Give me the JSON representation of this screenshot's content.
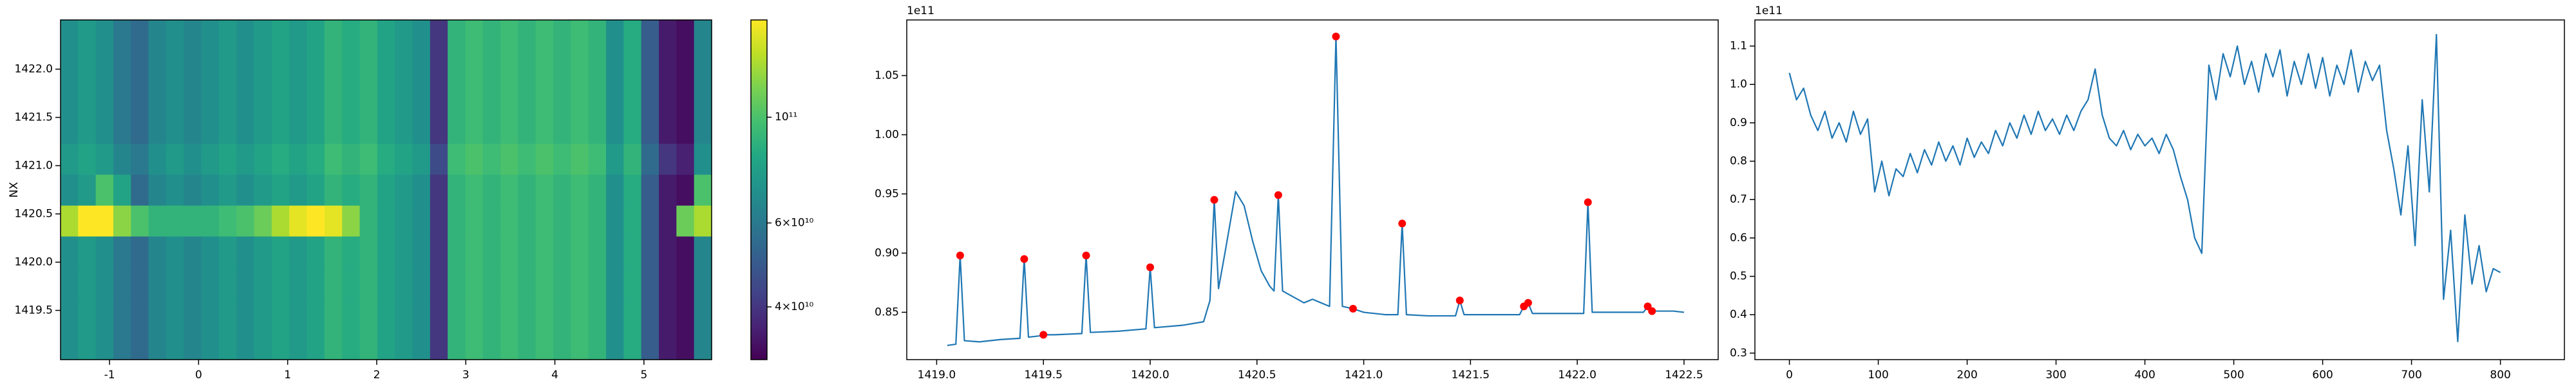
{
  "chart_data": [
    {
      "type": "heatmap",
      "ylabel": "NX",
      "colormap": "viridis",
      "zscale": "log",
      "xlim": [
        -1.55,
        5.76
      ],
      "ylim": [
        1418.99,
        1422.51
      ],
      "xticks": [
        -1,
        0,
        1,
        2,
        3,
        4,
        5
      ],
      "yticks": [
        1419.5,
        {
          "value": 1420,
          "label": "1420.0"
        },
        1420.5,
        {
          "value": 1421,
          "label": "1421.0"
        },
        1421.5,
        {
          "value": 1422,
          "label": "1422.0"
        }
      ],
      "zlim": [
        31000000000.0,
        160000000000.0
      ],
      "zticks": [
        {
          "value": 40000000000.0,
          "label": "4×10¹⁰"
        },
        {
          "value": 60000000000.0,
          "label": "6×10¹⁰"
        },
        {
          "value": 100000000000.0,
          "label": "10¹¹"
        }
      ],
      "z": [
        [
          70000000000.0,
          75000000000.0,
          70000000000.0,
          60000000000.0,
          55000000000.0,
          65000000000.0,
          70000000000.0,
          65000000000.0,
          70000000000.0,
          75000000000.0,
          70000000000.0,
          75000000000.0,
          80000000000.0,
          75000000000.0,
          80000000000.0,
          90000000000.0,
          85000000000.0,
          90000000000.0,
          80000000000.0,
          75000000000.0,
          70000000000.0,
          40000000000.0,
          90000000000.0,
          95000000000.0,
          90000000000.0,
          95000000000.0,
          90000000000.0,
          95000000000.0,
          90000000000.0,
          95000000000.0,
          90000000000.0,
          70000000000.0,
          85000000000.0,
          50000000000.0,
          35000000000.0,
          33000000000.0,
          65000000000.0
        ],
        [
          70000000000.0,
          75000000000.0,
          70000000000.0,
          60000000000.0,
          55000000000.0,
          65000000000.0,
          70000000000.0,
          65000000000.0,
          70000000000.0,
          75000000000.0,
          70000000000.0,
          75000000000.0,
          80000000000.0,
          75000000000.0,
          80000000000.0,
          90000000000.0,
          85000000000.0,
          90000000000.0,
          80000000000.0,
          75000000000.0,
          70000000000.0,
          40000000000.0,
          90000000000.0,
          95000000000.0,
          90000000000.0,
          95000000000.0,
          90000000000.0,
          95000000000.0,
          90000000000.0,
          95000000000.0,
          90000000000.0,
          70000000000.0,
          85000000000.0,
          50000000000.0,
          35000000000.0,
          33000000000.0,
          65000000000.0
        ],
        [
          70000000000.0,
          75000000000.0,
          70000000000.0,
          60000000000.0,
          55000000000.0,
          65000000000.0,
          70000000000.0,
          65000000000.0,
          70000000000.0,
          75000000000.0,
          70000000000.0,
          75000000000.0,
          80000000000.0,
          75000000000.0,
          80000000000.0,
          90000000000.0,
          85000000000.0,
          90000000000.0,
          80000000000.0,
          75000000000.0,
          70000000000.0,
          40000000000.0,
          90000000000.0,
          95000000000.0,
          90000000000.0,
          95000000000.0,
          90000000000.0,
          95000000000.0,
          90000000000.0,
          95000000000.0,
          90000000000.0,
          70000000000.0,
          85000000000.0,
          50000000000.0,
          35000000000.0,
          33000000000.0,
          65000000000.0
        ],
        [
          70000000000.0,
          75000000000.0,
          70000000000.0,
          60000000000.0,
          55000000000.0,
          65000000000.0,
          70000000000.0,
          65000000000.0,
          70000000000.0,
          75000000000.0,
          70000000000.0,
          75000000000.0,
          80000000000.0,
          75000000000.0,
          80000000000.0,
          90000000000.0,
          85000000000.0,
          90000000000.0,
          80000000000.0,
          75000000000.0,
          70000000000.0,
          40000000000.0,
          90000000000.0,
          95000000000.0,
          90000000000.0,
          95000000000.0,
          90000000000.0,
          95000000000.0,
          90000000000.0,
          95000000000.0,
          90000000000.0,
          70000000000.0,
          85000000000.0,
          50000000000.0,
          35000000000.0,
          33000000000.0,
          65000000000.0
        ],
        [
          130000000000.0,
          160000000000.0,
          160000000000.0,
          120000000000.0,
          100000000000.0,
          90000000000.0,
          90000000000.0,
          90000000000.0,
          90000000000.0,
          95000000000.0,
          100000000000.0,
          110000000000.0,
          130000000000.0,
          150000000000.0,
          160000000000.0,
          150000000000.0,
          120000000000.0,
          90000000000.0,
          80000000000.0,
          75000000000.0,
          70000000000.0,
          40000000000.0,
          90000000000.0,
          95000000000.0,
          90000000000.0,
          95000000000.0,
          90000000000.0,
          95000000000.0,
          90000000000.0,
          95000000000.0,
          90000000000.0,
          70000000000.0,
          85000000000.0,
          50000000000.0,
          35000000000.0,
          110000000000.0,
          130000000000.0
        ],
        [
          70000000000.0,
          75000000000.0,
          100000000000.0,
          80000000000.0,
          55000000000.0,
          65000000000.0,
          70000000000.0,
          65000000000.0,
          70000000000.0,
          75000000000.0,
          70000000000.0,
          75000000000.0,
          80000000000.0,
          75000000000.0,
          80000000000.0,
          90000000000.0,
          85000000000.0,
          90000000000.0,
          80000000000.0,
          75000000000.0,
          70000000000.0,
          40000000000.0,
          90000000000.0,
          95000000000.0,
          90000000000.0,
          95000000000.0,
          90000000000.0,
          95000000000.0,
          90000000000.0,
          95000000000.0,
          90000000000.0,
          70000000000.0,
          85000000000.0,
          50000000000.0,
          35000000000.0,
          33000000000.0,
          100000000000.0
        ],
        [
          75000000000.0,
          80000000000.0,
          75000000000.0,
          65000000000.0,
          60000000000.0,
          70000000000.0,
          75000000000.0,
          70000000000.0,
          75000000000.0,
          80000000000.0,
          75000000000.0,
          80000000000.0,
          85000000000.0,
          80000000000.0,
          85000000000.0,
          95000000000.0,
          90000000000.0,
          95000000000.0,
          85000000000.0,
          80000000000.0,
          75000000000.0,
          45000000000.0,
          95000000000.0,
          100000000000.0,
          95000000000.0,
          100000000000.0,
          95000000000.0,
          100000000000.0,
          95000000000.0,
          100000000000.0,
          95000000000.0,
          75000000000.0,
          90000000000.0,
          55000000000.0,
          40000000000.0,
          36000000000.0,
          70000000000.0
        ],
        [
          70000000000.0,
          75000000000.0,
          70000000000.0,
          60000000000.0,
          55000000000.0,
          65000000000.0,
          70000000000.0,
          65000000000.0,
          70000000000.0,
          75000000000.0,
          70000000000.0,
          75000000000.0,
          80000000000.0,
          75000000000.0,
          80000000000.0,
          90000000000.0,
          85000000000.0,
          90000000000.0,
          80000000000.0,
          75000000000.0,
          70000000000.0,
          40000000000.0,
          90000000000.0,
          95000000000.0,
          90000000000.0,
          95000000000.0,
          90000000000.0,
          95000000000.0,
          90000000000.0,
          95000000000.0,
          90000000000.0,
          70000000000.0,
          85000000000.0,
          50000000000.0,
          35000000000.0,
          33000000000.0,
          65000000000.0
        ],
        [
          70000000000.0,
          75000000000.0,
          70000000000.0,
          60000000000.0,
          55000000000.0,
          65000000000.0,
          70000000000.0,
          65000000000.0,
          70000000000.0,
          75000000000.0,
          70000000000.0,
          75000000000.0,
          80000000000.0,
          75000000000.0,
          80000000000.0,
          90000000000.0,
          85000000000.0,
          90000000000.0,
          80000000000.0,
          75000000000.0,
          70000000000.0,
          40000000000.0,
          90000000000.0,
          95000000000.0,
          90000000000.0,
          95000000000.0,
          90000000000.0,
          95000000000.0,
          90000000000.0,
          95000000000.0,
          90000000000.0,
          70000000000.0,
          85000000000.0,
          50000000000.0,
          35000000000.0,
          33000000000.0,
          65000000000.0
        ],
        [
          70000000000.0,
          75000000000.0,
          70000000000.0,
          60000000000.0,
          55000000000.0,
          65000000000.0,
          70000000000.0,
          65000000000.0,
          70000000000.0,
          75000000000.0,
          70000000000.0,
          75000000000.0,
          80000000000.0,
          75000000000.0,
          80000000000.0,
          90000000000.0,
          85000000000.0,
          90000000000.0,
          80000000000.0,
          75000000000.0,
          70000000000.0,
          40000000000.0,
          90000000000.0,
          95000000000.0,
          90000000000.0,
          95000000000.0,
          90000000000.0,
          95000000000.0,
          90000000000.0,
          95000000000.0,
          90000000000.0,
          70000000000.0,
          85000000000.0,
          50000000000.0,
          35000000000.0,
          33000000000.0,
          65000000000.0
        ],
        [
          70000000000.0,
          75000000000.0,
          70000000000.0,
          60000000000.0,
          55000000000.0,
          65000000000.0,
          70000000000.0,
          65000000000.0,
          70000000000.0,
          75000000000.0,
          70000000000.0,
          75000000000.0,
          80000000000.0,
          75000000000.0,
          80000000000.0,
          90000000000.0,
          85000000000.0,
          90000000000.0,
          80000000000.0,
          75000000000.0,
          70000000000.0,
          40000000000.0,
          90000000000.0,
          95000000000.0,
          90000000000.0,
          95000000000.0,
          90000000000.0,
          95000000000.0,
          90000000000.0,
          95000000000.0,
          90000000000.0,
          70000000000.0,
          85000000000.0,
          50000000000.0,
          35000000000.0,
          33000000000.0,
          65000000000.0
        ]
      ]
    },
    {
      "type": "line",
      "offset_label": "1e11",
      "color": "#1f77b4",
      "xlim": [
        1418.86,
        1422.66
      ],
      "ylim": [
        0.81,
        1.097
      ],
      "xticks": [
        {
          "value": 1419,
          "label": "1419.0"
        },
        1419.5,
        {
          "value": 1420,
          "label": "1420.0"
        },
        1420.5,
        {
          "value": 1421,
          "label": "1421.0"
        },
        1421.5,
        {
          "value": 1422,
          "label": "1422.0"
        },
        1422.5
      ],
      "yticks": [
        0.85,
        {
          "value": 0.9,
          "label": "0.90"
        },
        0.95,
        {
          "value": 1,
          "label": "1.00"
        },
        1.05
      ],
      "x": [
        1419.05,
        1419.09,
        1419.11,
        1419.13,
        1419.2,
        1419.3,
        1419.39,
        1419.41,
        1419.43,
        1419.48,
        1419.5,
        1419.55,
        1419.68,
        1419.7,
        1419.72,
        1419.85,
        1419.98,
        1420.0,
        1420.02,
        1420.15,
        1420.25,
        1420.28,
        1420.3,
        1420.32,
        1420.35,
        1420.4,
        1420.44,
        1420.48,
        1420.52,
        1420.56,
        1420.58,
        1420.6,
        1420.62,
        1420.68,
        1420.72,
        1420.76,
        1420.8,
        1420.84,
        1420.87,
        1420.9,
        1420.95,
        1421.0,
        1421.1,
        1421.16,
        1421.18,
        1421.2,
        1421.3,
        1421.43,
        1421.45,
        1421.47,
        1421.6,
        1421.73,
        1421.75,
        1421.77,
        1421.79,
        1421.9,
        1422.03,
        1422.05,
        1422.07,
        1422.2,
        1422.31,
        1422.33,
        1422.35,
        1422.45,
        1422.5
      ],
      "values": [
        0.822,
        0.823,
        0.898,
        0.826,
        0.825,
        0.827,
        0.828,
        0.895,
        0.829,
        0.83,
        0.831,
        0.831,
        0.832,
        0.898,
        0.833,
        0.834,
        0.836,
        0.888,
        0.837,
        0.839,
        0.842,
        0.86,
        0.945,
        0.87,
        0.9,
        0.952,
        0.94,
        0.91,
        0.885,
        0.872,
        0.868,
        0.949,
        0.868,
        0.862,
        0.858,
        0.861,
        0.858,
        0.855,
        1.083,
        0.855,
        0.853,
        0.85,
        0.848,
        0.848,
        0.925,
        0.848,
        0.847,
        0.847,
        0.86,
        0.848,
        0.848,
        0.848,
        0.855,
        0.858,
        0.849,
        0.849,
        0.849,
        0.943,
        0.85,
        0.85,
        0.85,
        0.855,
        0.851,
        0.851,
        0.85
      ],
      "markers": {
        "color": "#ff0000",
        "x": [
          1419.11,
          1419.41,
          1419.5,
          1419.7,
          1420.0,
          1420.3,
          1420.6,
          1420.87,
          1420.95,
          1421.18,
          1421.45,
          1421.75,
          1421.77,
          1422.05,
          1422.33,
          1422.35
        ],
        "values": [
          0.898,
          0.895,
          0.831,
          0.898,
          0.888,
          0.945,
          0.949,
          1.083,
          0.853,
          0.925,
          0.86,
          0.855,
          0.858,
          0.943,
          0.855,
          0.851
        ]
      }
    },
    {
      "type": "line",
      "offset_label": "1e11",
      "color": "#1f77b4",
      "xlim": [
        -38.8,
        872
      ],
      "ylim": [
        0.283,
        1.168
      ],
      "xticks": [
        0,
        100,
        200,
        300,
        400,
        500,
        600,
        700,
        800
      ],
      "yticks": [
        0.3,
        0.4,
        0.5,
        0.6,
        0.7,
        0.8,
        0.9,
        {
          "value": 1,
          "label": "1.0"
        },
        1.1
      ],
      "x": [
        0,
        8,
        16,
        24,
        32,
        40,
        48,
        56,
        64,
        72,
        80,
        88,
        96,
        104,
        112,
        120,
        128,
        136,
        144,
        152,
        160,
        168,
        176,
        184,
        192,
        200,
        208,
        216,
        224,
        232,
        240,
        248,
        256,
        264,
        272,
        280,
        288,
        296,
        304,
        312,
        320,
        328,
        336,
        344,
        352,
        360,
        368,
        376,
        384,
        392,
        400,
        408,
        416,
        424,
        432,
        440,
        448,
        456,
        464,
        472,
        480,
        488,
        496,
        504,
        512,
        520,
        528,
        536,
        544,
        552,
        560,
        568,
        576,
        584,
        592,
        600,
        608,
        616,
        624,
        632,
        640,
        648,
        656,
        664,
        672,
        680,
        688,
        696,
        704,
        712,
        720,
        728,
        736,
        744,
        752,
        760,
        768,
        776,
        784,
        792,
        800
      ],
      "values": [
        1.03,
        0.96,
        0.99,
        0.92,
        0.88,
        0.93,
        0.86,
        0.9,
        0.85,
        0.93,
        0.87,
        0.91,
        0.72,
        0.8,
        0.71,
        0.78,
        0.76,
        0.82,
        0.77,
        0.83,
        0.79,
        0.85,
        0.8,
        0.84,
        0.79,
        0.86,
        0.81,
        0.85,
        0.82,
        0.88,
        0.84,
        0.9,
        0.86,
        0.92,
        0.87,
        0.93,
        0.88,
        0.91,
        0.87,
        0.92,
        0.88,
        0.93,
        0.96,
        1.04,
        0.92,
        0.86,
        0.84,
        0.88,
        0.83,
        0.87,
        0.84,
        0.86,
        0.82,
        0.87,
        0.83,
        0.76,
        0.7,
        0.6,
        0.56,
        1.05,
        0.96,
        1.08,
        1.02,
        1.1,
        1.0,
        1.06,
        0.98,
        1.08,
        1.02,
        1.09,
        0.97,
        1.06,
        1.0,
        1.08,
        0.99,
        1.07,
        0.97,
        1.05,
        1.0,
        1.09,
        0.98,
        1.06,
        1.01,
        1.05,
        0.88,
        0.78,
        0.66,
        0.84,
        0.58,
        0.96,
        0.72,
        1.13,
        0.44,
        0.62,
        0.33,
        0.66,
        0.48,
        0.58,
        0.46,
        0.52,
        0.51
      ]
    }
  ]
}
